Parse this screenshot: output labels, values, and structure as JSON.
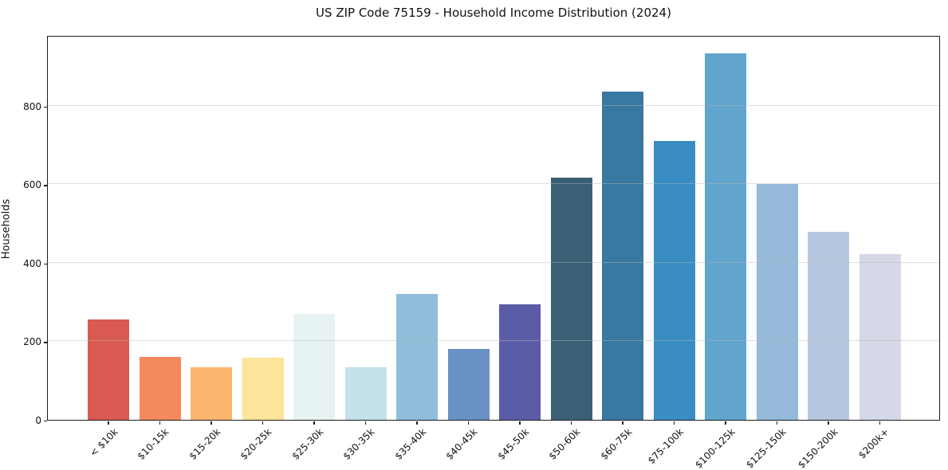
{
  "figure": {
    "background": "#ffffff"
  },
  "chart_data": {
    "type": "bar",
    "title": "US ZIP Code 75159 - Household Income Distribution (2024)",
    "xlabel": "",
    "ylabel": "Households",
    "categories": [
      "< $10k",
      "$10-15k",
      "$15-20k",
      "$20-25k",
      "$25-30k",
      "$30-35k",
      "$35-40k",
      "$40-45k",
      "$45-50k",
      "$50-60k",
      "$60-75k",
      "$75-100k",
      "$100-125k",
      "$125-150k",
      "$150-200k",
      "$200k+"
    ],
    "values": [
      256,
      161,
      133,
      158,
      270,
      134,
      321,
      181,
      295,
      616,
      836,
      710,
      934,
      601,
      479,
      422
    ],
    "bar_colors": [
      "#d95a52",
      "#f4895e",
      "#fbb66e",
      "#fde49b",
      "#e7f3f3",
      "#c3e2eb",
      "#8fbdda",
      "#6991c3",
      "#5a5ca7",
      "#3a6076",
      "#3878a1",
      "#398dc3",
      "#61a5cd",
      "#95bad9",
      "#b6c8df",
      "#d5d8e6"
    ],
    "ylim": [
      0,
      980
    ],
    "yticks": [
      0,
      200,
      400,
      600,
      800
    ],
    "grid": "horizontal-gridlines-on",
    "legend": "none",
    "x_tick_rotation_deg": 45,
    "axis_color": "#1c1c1c",
    "gridline_color": "#e9e9e9"
  }
}
